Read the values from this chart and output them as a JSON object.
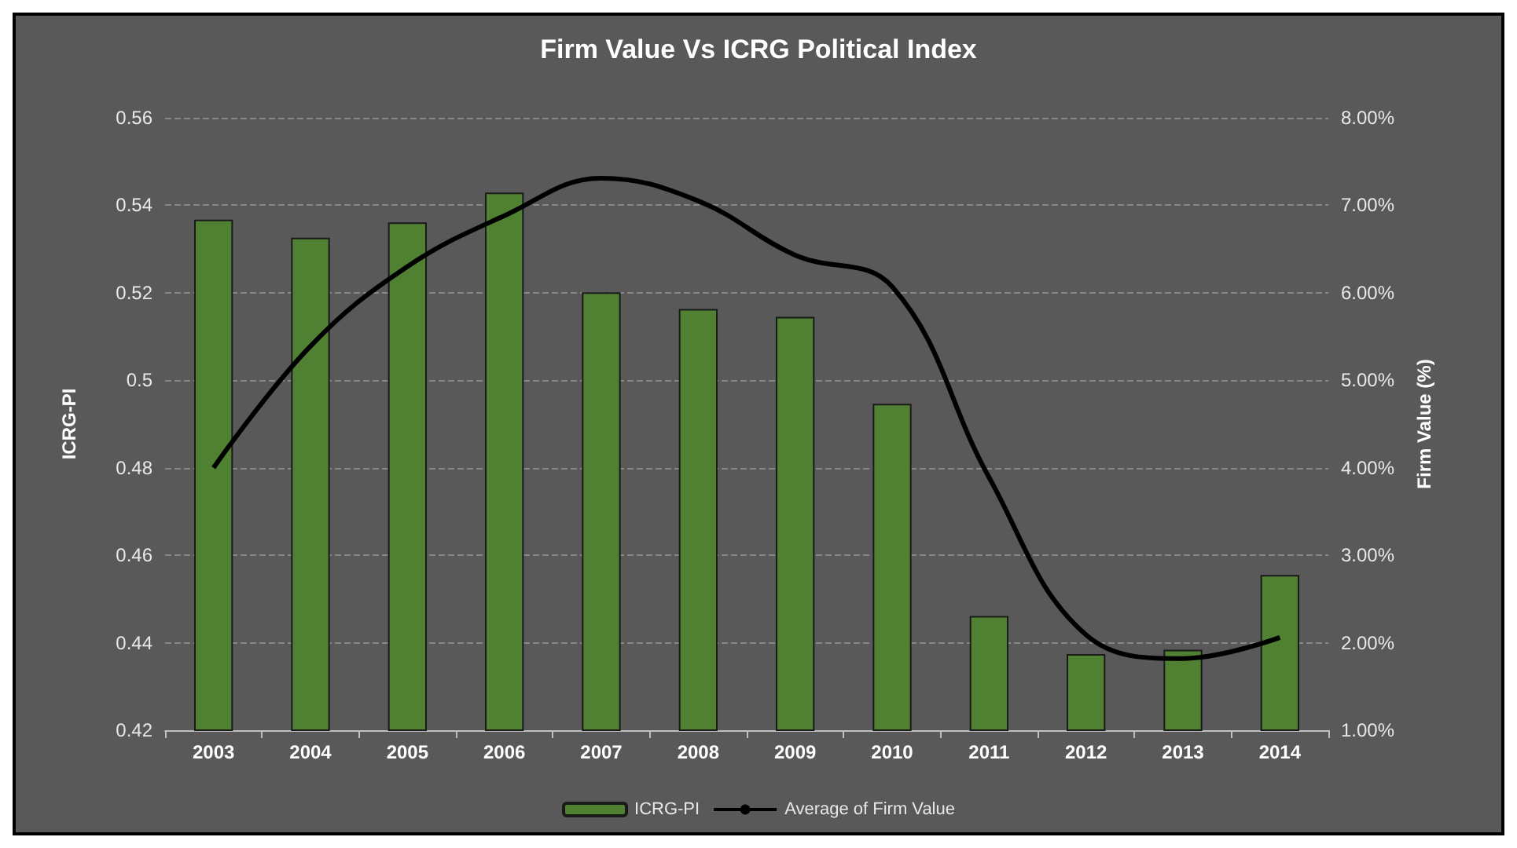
{
  "chart_data": {
    "type": "bar",
    "title": "Firm Value Vs ICRG Political Index",
    "ylabel": "ICRG-PI",
    "y2label": "Firm Value (%)",
    "categories": [
      "2003",
      "2004",
      "2005",
      "2006",
      "2007",
      "2008",
      "2009",
      "2010",
      "2011",
      "2012",
      "2013",
      "2014"
    ],
    "series": [
      {
        "name": "ICRG-PI",
        "color": "#508132",
        "values": [
          0.5367,
          0.5326,
          0.5361,
          0.5429,
          0.5201,
          0.5163,
          0.5145,
          0.4946,
          0.4461,
          0.4374,
          0.4384,
          0.4555
        ]
      },
      {
        "name": "Average of Firm Value",
        "type": "line",
        "axis": "y2",
        "color": "#000000",
        "values": [
          4.0,
          5.39,
          6.3,
          6.88,
          7.31,
          7.05,
          6.43,
          6.07,
          3.89,
          2.09,
          1.82,
          2.06
        ]
      }
    ],
    "ylim": [
      0.42,
      0.56
    ],
    "yticks": [
      0.42,
      0.44,
      0.46,
      0.48,
      0.5,
      0.52,
      0.54,
      0.56
    ],
    "y2lim": [
      1,
      8
    ],
    "y2ticks": [
      {
        "value": 1,
        "label": "1.00%"
      },
      {
        "value": 2,
        "label": "2.00%"
      },
      {
        "value": 3,
        "label": "3.00%"
      },
      {
        "value": 4,
        "label": "4.00%"
      },
      {
        "value": 5,
        "label": "5.00%"
      },
      {
        "value": 6,
        "label": "6.00%"
      },
      {
        "value": 7,
        "label": "7.00%"
      },
      {
        "value": 8,
        "label": "8.00%"
      }
    ],
    "grid": "y",
    "legend": "bottom",
    "marker": "none",
    "line_style": "solid"
  }
}
